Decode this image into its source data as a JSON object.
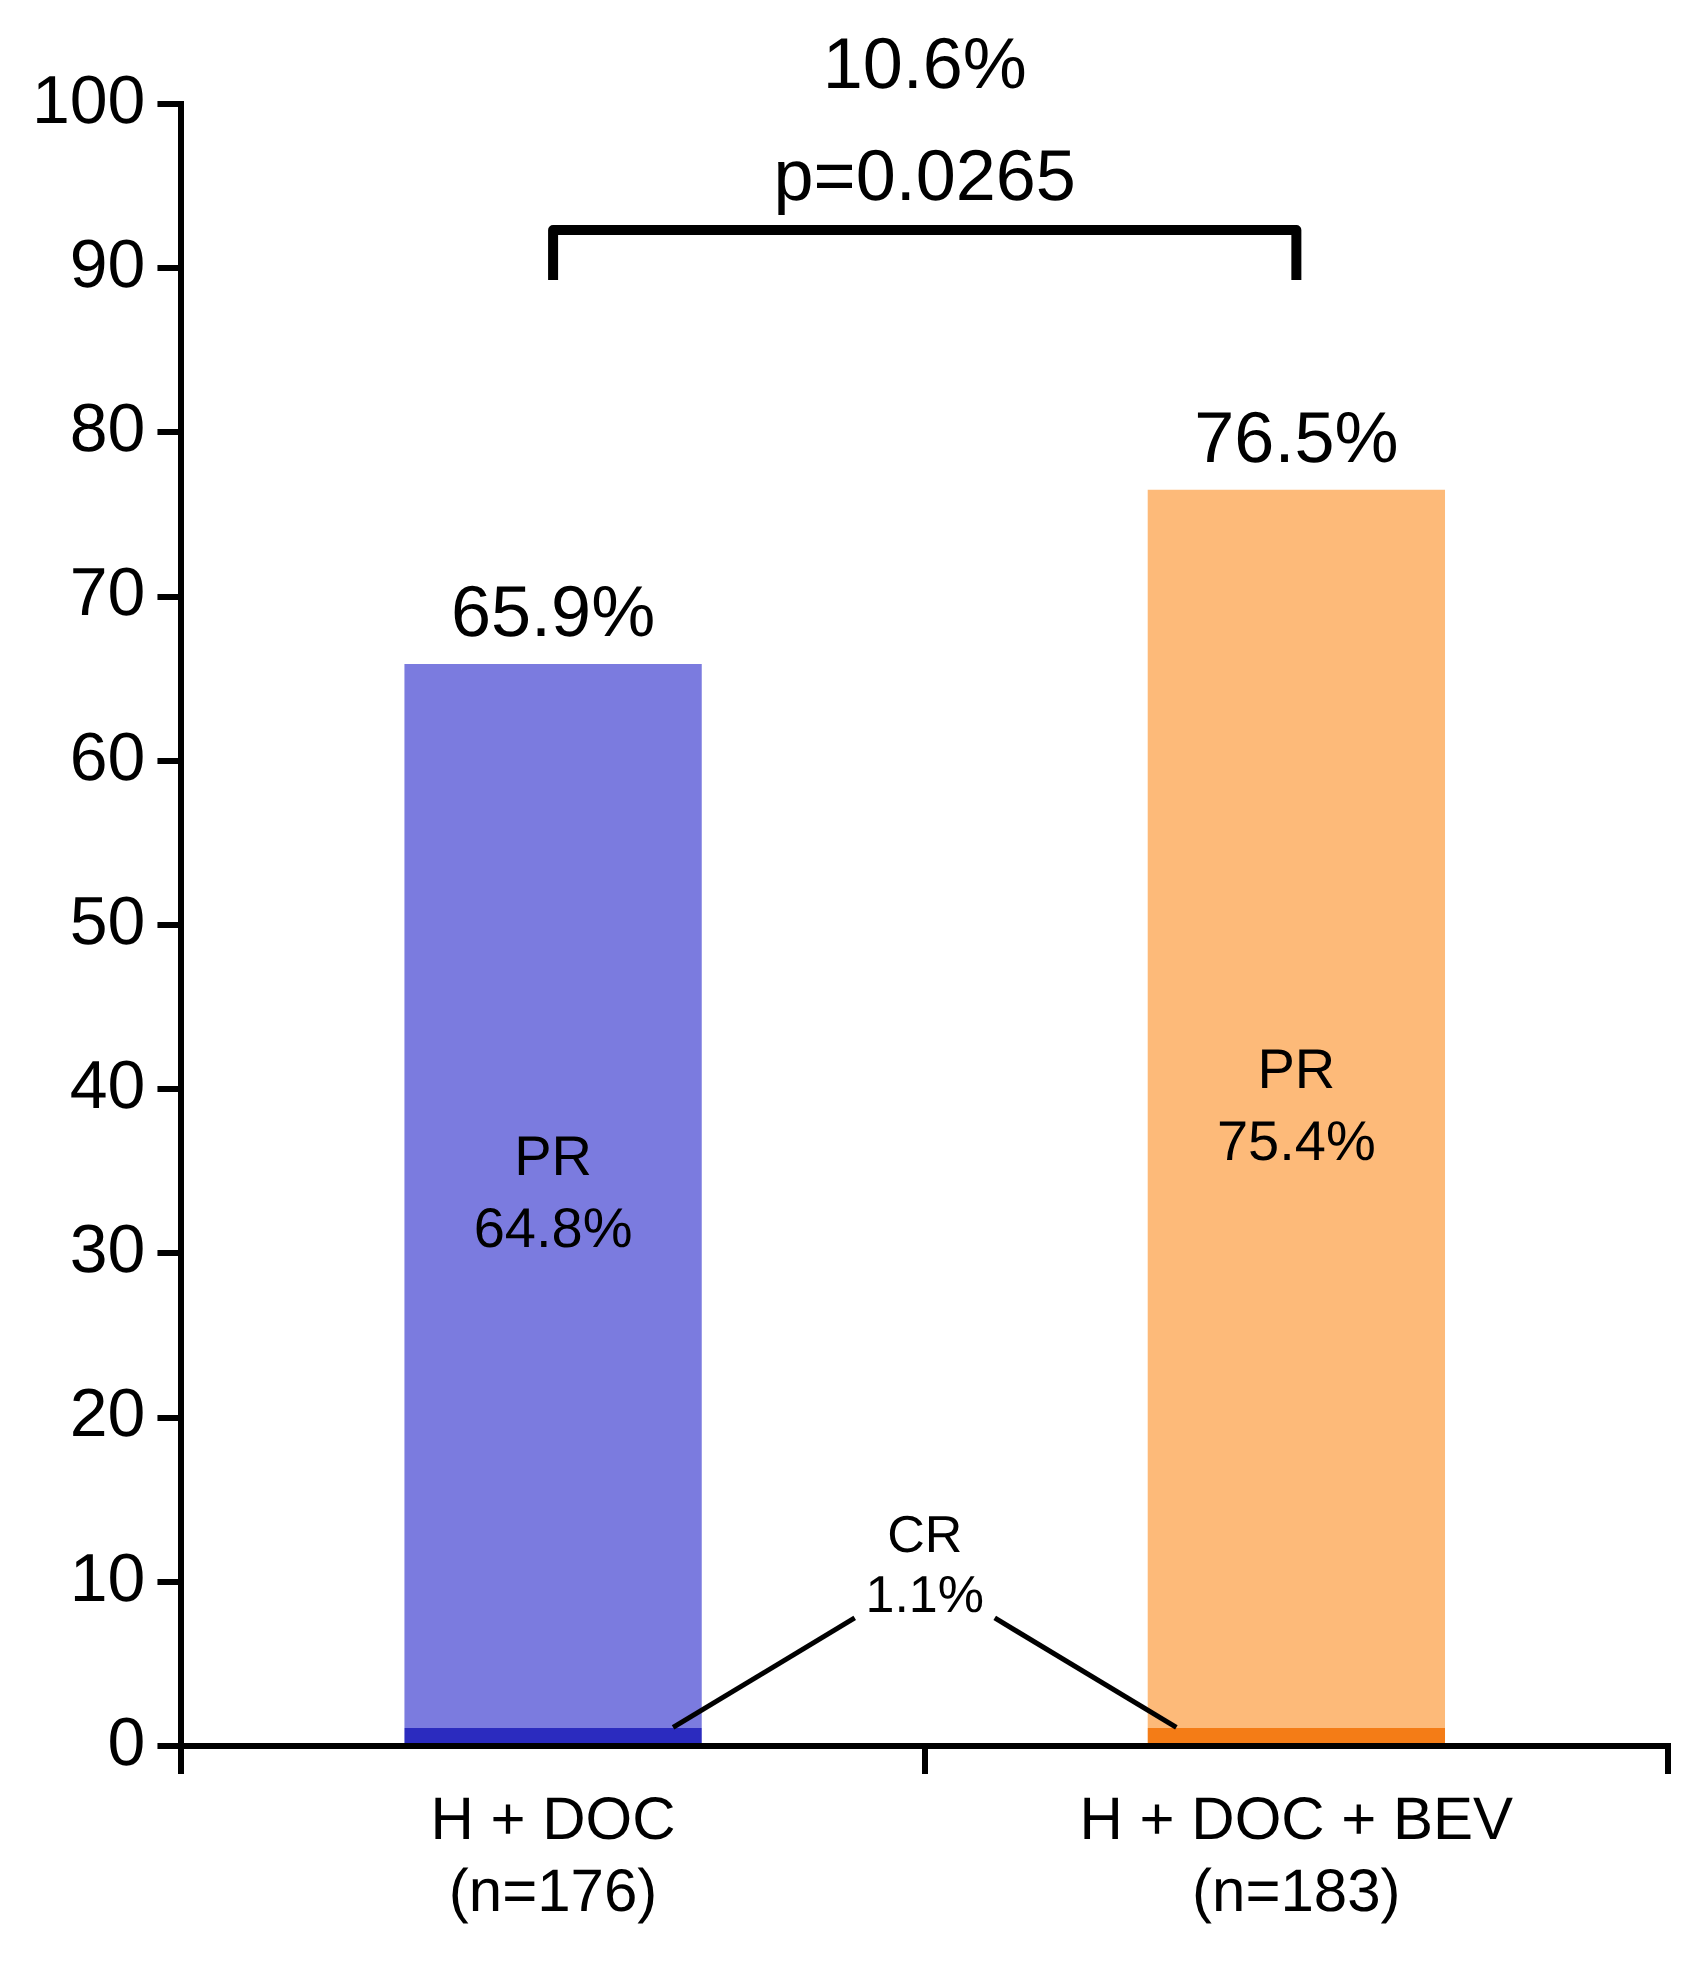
{
  "chart_data": {
    "type": "bar",
    "stacked": true,
    "categories": [
      "H + DOC\n(n=176)",
      "H + DOC + BEV\n(n=183)"
    ],
    "series": [
      {
        "name": "CR",
        "colors": [
          "#2b2bbf",
          "#f47c16"
        ],
        "values": [
          1.1,
          1.1
        ],
        "value_labels": [
          "1.1%",
          null
        ]
      },
      {
        "name": "PR",
        "colors": [
          "#7b7bdf",
          "#fdba79"
        ],
        "values": [
          64.8,
          75.4
        ],
        "value_labels": [
          "64.8%",
          "75.4%"
        ]
      }
    ],
    "totals": [
      "65.9%",
      "76.5%"
    ],
    "annotations": [
      "10.6%\np=0.0265"
    ],
    "ylim": [
      0,
      100
    ],
    "yticks": [
      0,
      10,
      20,
      30,
      40,
      50,
      60,
      70,
      80,
      90,
      100
    ],
    "grid": false,
    "legend": false
  }
}
